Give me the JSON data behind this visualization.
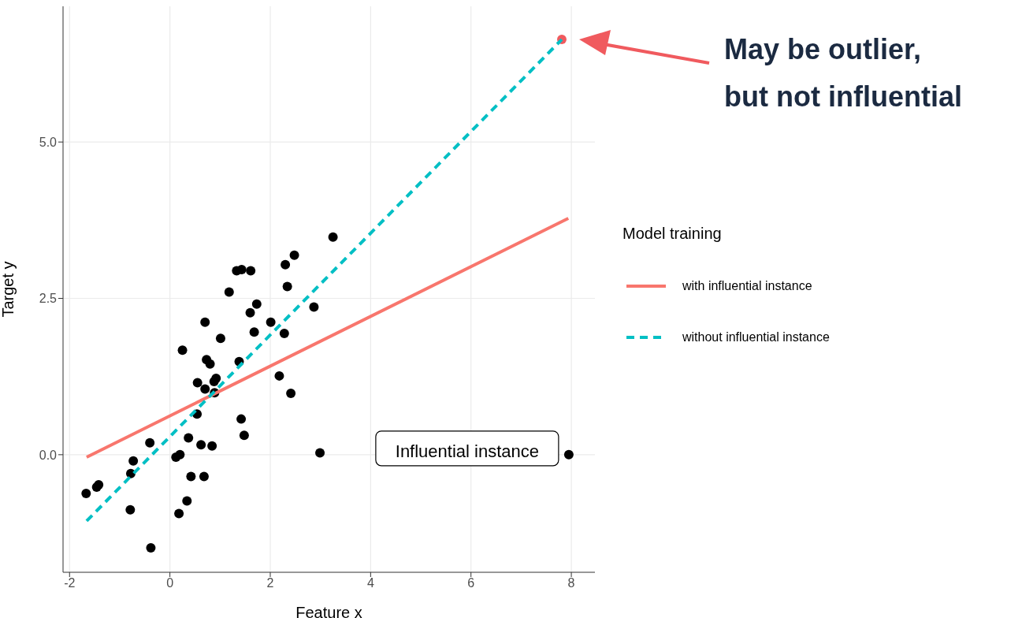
{
  "chart_data": {
    "type": "scatter",
    "xlabel": "Feature x",
    "ylabel": "Target y",
    "legend_title": "Model training",
    "legend": "right",
    "grid": true,
    "xlim": [
      -2.13,
      8.47
    ],
    "ylim": [
      -1.88,
      7.17
    ],
    "xticks": [
      -2,
      0,
      2,
      4,
      6,
      8
    ],
    "yticks": [
      {
        "value": 0,
        "label": "0.0"
      },
      {
        "value": 2.5,
        "label": "2.5"
      },
      {
        "value": 5,
        "label": "5.0"
      }
    ],
    "series": [
      {
        "type": "scatter",
        "color": "#000000",
        "marker": "circle",
        "x": [
          -1.67,
          -1.46,
          -1.42,
          -0.79,
          -0.78,
          -0.73,
          -0.4,
          -0.38,
          0.12,
          0.2,
          0.18,
          0.25,
          0.34,
          0.37,
          0.42,
          0.54,
          0.55,
          0.62,
          0.68,
          0.7,
          0.7,
          0.73,
          0.8,
          0.84,
          0.88,
          0.92,
          0.89,
          1.01,
          1.18,
          1.33,
          1.43,
          1.38,
          1.42,
          1.48,
          1.61,
          1.6,
          1.73,
          1.68,
          2.01,
          2.18,
          2.28,
          2.3,
          2.34,
          2.41,
          2.48,
          2.87,
          2.99,
          3.25,
          7.95
        ],
        "values": [
          -0.62,
          -0.52,
          -0.48,
          -0.88,
          -0.3,
          -0.1,
          0.19,
          -1.49,
          -0.04,
          0,
          -0.94,
          1.67,
          -0.74,
          0.27,
          -0.35,
          0.65,
          1.15,
          0.16,
          -0.35,
          2.12,
          1.05,
          1.52,
          1.45,
          0.14,
          1.17,
          1.22,
          0.99,
          1.86,
          2.6,
          2.94,
          2.96,
          1.49,
          0.57,
          0.31,
          2.94,
          2.27,
          2.41,
          1.96,
          2.12,
          1.26,
          1.94,
          3.04,
          2.69,
          0.98,
          3.19,
          2.36,
          0.03,
          3.48,
          0
        ]
      },
      {
        "type": "scatter",
        "color": "#f05a5e",
        "marker": "circle",
        "x": [
          7.81
        ],
        "values": [
          6.64
        ]
      },
      {
        "type": "line",
        "name": "with influential instance",
        "color": "#f8766d",
        "line_style": "solid",
        "marker": "none",
        "x": [
          -1.66,
          7.94
        ],
        "values": [
          -0.04,
          3.78
        ]
      },
      {
        "type": "line",
        "name": "without influential instance",
        "color": "#00bfc4",
        "line_style": "dashed",
        "marker": "none",
        "x": [
          -1.66,
          7.81
        ],
        "values": [
          -1.06,
          6.64
        ]
      }
    ],
    "annotations": [
      {
        "text": "Influential instance",
        "x": 7.95,
        "y": 0
      },
      "May be outlier,\nbut not influential"
    ]
  }
}
